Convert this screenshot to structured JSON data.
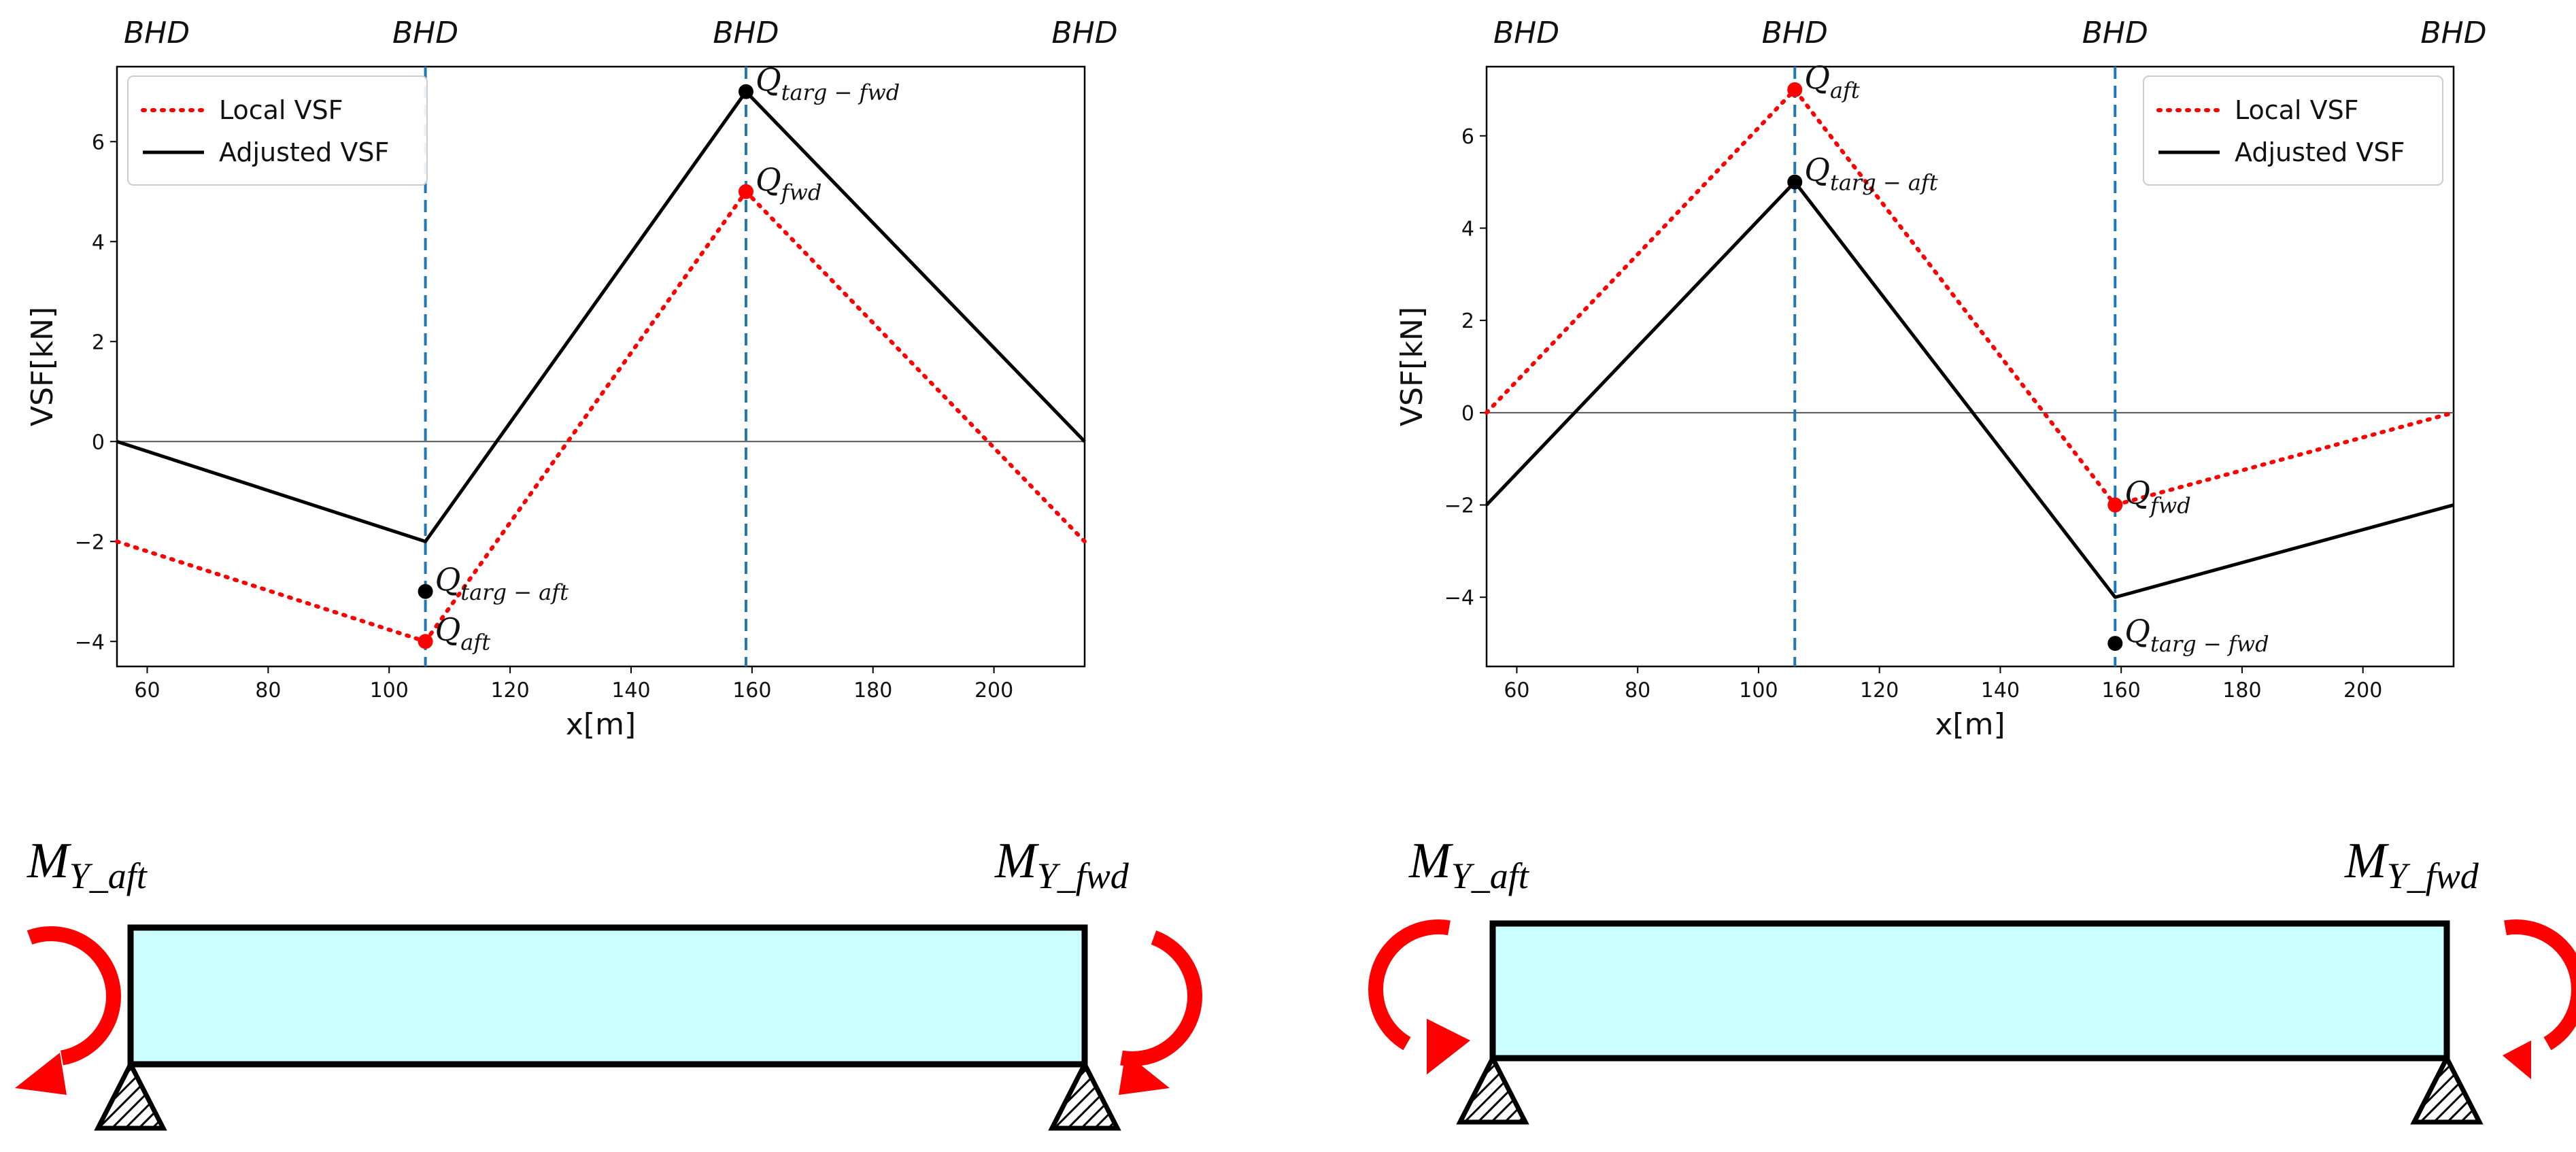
{
  "chart_data": [
    {
      "type": "line",
      "title": "",
      "xlabel": "x[m]",
      "ylabel": "VSF[kN]",
      "xlim": [
        55,
        215
      ],
      "ylim": [
        -4.5,
        7.5
      ],
      "xticks": [
        60,
        80,
        100,
        120,
        140,
        160,
        180,
        200
      ],
      "yticks": [
        -4,
        -2,
        0,
        2,
        4,
        6
      ],
      "legend_position": "top-left",
      "bulkheads": {
        "label": "BHD",
        "positions": [
          55,
          106,
          159,
          215
        ]
      },
      "series": [
        {
          "name": "Local VSF",
          "style": "dotted",
          "color": "#ff0000",
          "x": [
            55,
            106,
            159,
            215
          ],
          "y": [
            -2,
            -4,
            5,
            -2
          ]
        },
        {
          "name": "Adjusted VSF",
          "style": "solid",
          "color": "#000000",
          "x": [
            55,
            106,
            159,
            215
          ],
          "y": [
            0,
            -2,
            7,
            0
          ]
        }
      ],
      "points": [
        {
          "label": "Q",
          "sub": "targ − fwd",
          "x": 159,
          "y": 7,
          "color": "#000000"
        },
        {
          "label": "Q",
          "sub": "fwd",
          "x": 159,
          "y": 5,
          "color": "#ff0000"
        },
        {
          "label": "Q",
          "sub": "targ − aft",
          "x": 106,
          "y": -3,
          "color": "#000000"
        },
        {
          "label": "Q",
          "sub": "aft",
          "x": 106,
          "y": -4,
          "color": "#ff0000"
        }
      ]
    },
    {
      "type": "line",
      "title": "",
      "xlabel": "x[m]",
      "ylabel": "VSF[kN]",
      "xlim": [
        55,
        215
      ],
      "ylim": [
        -5.5,
        7.5
      ],
      "xticks": [
        60,
        80,
        100,
        120,
        140,
        160,
        180,
        200
      ],
      "yticks": [
        -4,
        -2,
        0,
        2,
        4,
        6
      ],
      "legend_position": "top-right",
      "bulkheads": {
        "label": "BHD",
        "positions": [
          55,
          106,
          159,
          215
        ]
      },
      "series": [
        {
          "name": "Local VSF",
          "style": "dotted",
          "color": "#ff0000",
          "x": [
            55,
            106,
            159,
            215
          ],
          "y": [
            0,
            7,
            -2,
            0
          ]
        },
        {
          "name": "Adjusted VSF",
          "style": "solid",
          "color": "#000000",
          "x": [
            55,
            106,
            159,
            215
          ],
          "y": [
            -2,
            5,
            -4,
            -2
          ]
        }
      ],
      "points": [
        {
          "label": "Q",
          "sub": "aft",
          "x": 106,
          "y": 7,
          "color": "#ff0000"
        },
        {
          "label": "Q",
          "sub": "targ − aft",
          "x": 106,
          "y": 5,
          "color": "#000000"
        },
        {
          "label": "Q",
          "sub": "fwd",
          "x": 159,
          "y": -2,
          "color": "#ff0000"
        },
        {
          "label": "Q",
          "sub": "targ − fwd",
          "x": 159,
          "y": -5,
          "color": "#000000"
        }
      ]
    }
  ],
  "beams": [
    {
      "moment_aft": {
        "main": "M",
        "sub": "Y_aft"
      },
      "moment_fwd": {
        "main": "M",
        "sub": "Y_fwd"
      },
      "arrow_direction": "downward-outward"
    },
    {
      "moment_aft": {
        "main": "M",
        "sub": "Y_aft"
      },
      "moment_fwd": {
        "main": "M",
        "sub": "Y_fwd"
      },
      "arrow_direction": "inward-pointing"
    }
  ],
  "colors": {
    "local": "#ff0000",
    "adjusted": "#000000",
    "bulkhead": "#1f77b4",
    "beam_fill": "#ccffff",
    "moment_arrow": "#ff0000"
  }
}
